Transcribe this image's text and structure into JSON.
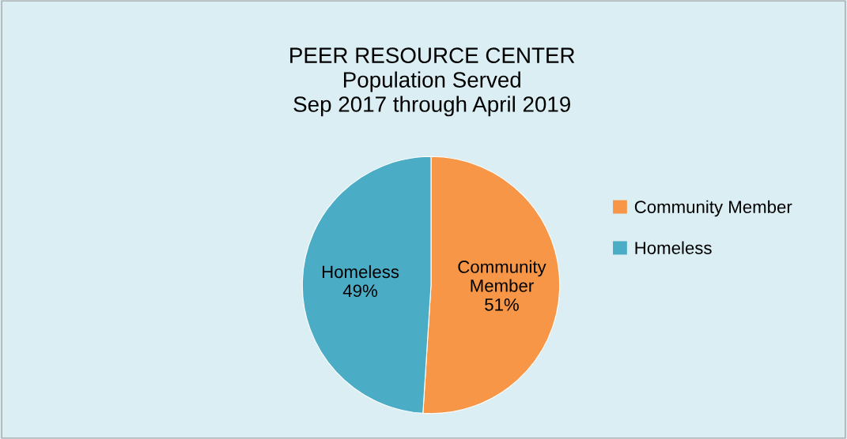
{
  "chart_data": {
    "type": "pie",
    "title": "PEER RESOURCE CENTER\nPopulation Served\nSep 2017 through April 2019",
    "categories": [
      "Community Member",
      "Homeless"
    ],
    "values": [
      51,
      49
    ],
    "colors": [
      "#f79646",
      "#4bacc6"
    ],
    "value_labels": [
      "51%",
      "49%"
    ],
    "legend": "right"
  }
}
